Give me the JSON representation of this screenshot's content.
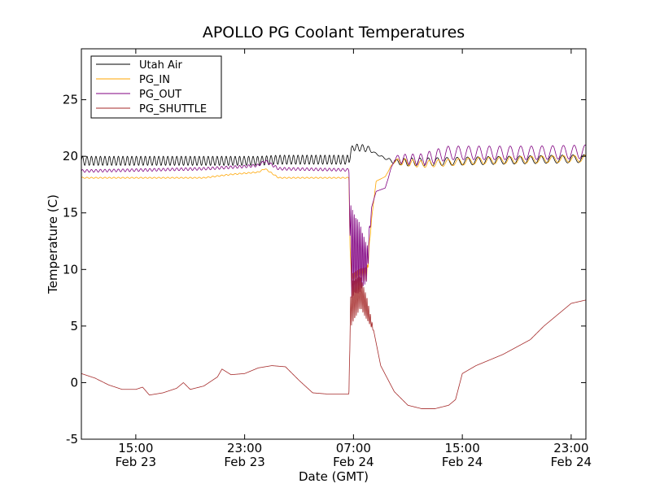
{
  "chart_data": {
    "type": "line",
    "title": "APOLLO PG Coolant Temperatures",
    "xlabel": "Date (GMT)",
    "ylabel": "Temperature (C)",
    "ylim": [
      -5,
      29.5
    ],
    "xlim": [
      "2012-02-23T11:00",
      "2012-02-25T00:05"
    ],
    "y_ticks": [
      -5,
      0,
      5,
      10,
      15,
      20,
      25
    ],
    "x_ticks": [
      {
        "x": "2012-02-23T15:00",
        "time": "15:00",
        "date": "Feb 23"
      },
      {
        "x": "2012-02-23T23:00",
        "time": "23:00",
        "date": "Feb 23"
      },
      {
        "x": "2012-02-24T07:00",
        "time": "07:00",
        "date": "Feb 24"
      },
      {
        "x": "2012-02-24T15:00",
        "time": "15:00",
        "date": "Feb 24"
      },
      {
        "x": "2012-02-24T23:00",
        "time": "23:00",
        "date": "Feb 24"
      }
    ],
    "legend_position": "top-left",
    "grid": false,
    "series": [
      {
        "name": "Utah Air",
        "color": "#000000",
        "style": "oscillating",
        "points": [
          [
            "2012-02-23T11:00",
            19.6
          ],
          [
            "2012-02-23T20:00",
            19.6
          ],
          [
            "2012-02-24T00:00",
            19.6
          ],
          [
            "2012-02-24T01:30",
            19.7
          ],
          [
            "2012-02-24T06:40",
            19.7
          ],
          [
            "2012-02-24T06:50",
            20.5
          ],
          [
            "2012-02-24T07:00",
            20.8
          ],
          [
            "2012-02-24T08:00",
            20.7
          ],
          [
            "2012-02-24T09:00",
            20.0
          ],
          [
            "2012-02-24T10:00",
            19.5
          ],
          [
            "2012-02-24T12:00",
            19.5
          ],
          [
            "2012-02-24T16:00",
            19.6
          ],
          [
            "2012-02-24T20:00",
            19.7
          ],
          [
            "2012-02-25T00:05",
            19.8
          ]
        ],
        "amplitude": [
          [
            "2012-02-23T11:00",
            0.4
          ],
          [
            "2012-02-24T06:40",
            0.4
          ],
          [
            "2012-02-24T06:50",
            0.3
          ],
          [
            "2012-02-24T08:00",
            0.3
          ],
          [
            "2012-02-24T08:30",
            0.05
          ],
          [
            "2012-02-24T09:30",
            0.1
          ],
          [
            "2012-02-24T11:00",
            0.35
          ],
          [
            "2012-02-25T00:05",
            0.35
          ]
        ],
        "period_hours": [
          [
            "2012-02-23T11:00",
            0.33
          ],
          [
            "2012-02-24T06:40",
            0.33
          ],
          [
            "2012-02-24T08:30",
            0.5
          ],
          [
            "2012-02-24T12:00",
            0.6
          ],
          [
            "2012-02-24T14:00",
            0.75
          ],
          [
            "2012-02-25T00:05",
            0.8
          ]
        ]
      },
      {
        "name": "PG_IN",
        "color": "#ffa500",
        "style": "smooth",
        "points": [
          [
            "2012-02-23T11:00",
            18.1
          ],
          [
            "2012-02-23T20:00",
            18.1
          ],
          [
            "2012-02-23T22:00",
            18.4
          ],
          [
            "2012-02-24T00:00",
            18.6
          ],
          [
            "2012-02-24T00:30",
            18.9
          ],
          [
            "2012-02-24T01:00",
            18.5
          ],
          [
            "2012-02-24T01:30",
            18.1
          ],
          [
            "2012-02-24T06:40",
            18.1
          ],
          [
            "2012-02-24T06:45",
            12.0
          ],
          [
            "2012-02-24T06:50",
            9.0
          ],
          [
            "2012-02-24T07:30",
            9.5
          ],
          [
            "2012-02-24T08:00",
            9.6
          ],
          [
            "2012-02-24T08:20",
            14.5
          ],
          [
            "2012-02-24T08:40",
            17.8
          ],
          [
            "2012-02-24T09:20",
            18.2
          ],
          [
            "2012-02-24T10:00",
            19.6
          ],
          [
            "2012-02-24T12:00",
            19.3
          ],
          [
            "2012-02-24T16:00",
            19.6
          ],
          [
            "2012-02-24T20:00",
            19.7
          ],
          [
            "2012-02-25T00:05",
            19.8
          ]
        ],
        "amplitude": [
          [
            "2012-02-23T11:00",
            0.05
          ],
          [
            "2012-02-24T06:40",
            0.05
          ],
          [
            "2012-02-24T06:50",
            0.6
          ],
          [
            "2012-02-24T08:00",
            0.6
          ],
          [
            "2012-02-24T08:20",
            0.0
          ],
          [
            "2012-02-24T09:30",
            0.0
          ],
          [
            "2012-02-24T10:30",
            0.3
          ],
          [
            "2012-02-25T00:05",
            0.3
          ]
        ],
        "period_hours": [
          [
            "2012-02-23T11:00",
            0.33
          ],
          [
            "2012-02-24T06:40",
            0.33
          ],
          [
            "2012-02-24T06:50",
            0.12
          ],
          [
            "2012-02-24T08:00",
            0.12
          ],
          [
            "2012-02-24T09:00",
            0.5
          ],
          [
            "2012-02-24T12:00",
            0.6
          ],
          [
            "2012-02-24T14:00",
            0.75
          ],
          [
            "2012-02-25T00:05",
            0.8
          ]
        ]
      },
      {
        "name": "PG_OUT",
        "color": "#800080",
        "style": "smooth",
        "points": [
          [
            "2012-02-23T11:00",
            18.7
          ],
          [
            "2012-02-23T16:00",
            18.8
          ],
          [
            "2012-02-23T20:00",
            18.9
          ],
          [
            "2012-02-23T23:00",
            19.1
          ],
          [
            "2012-02-24T00:00",
            19.2
          ],
          [
            "2012-02-24T00:30",
            19.6
          ],
          [
            "2012-02-24T01:30",
            18.9
          ],
          [
            "2012-02-24T06:40",
            18.8
          ],
          [
            "2012-02-24T06:45",
            14.0
          ],
          [
            "2012-02-24T06:50",
            11.5
          ],
          [
            "2012-02-24T07:30",
            11.0
          ],
          [
            "2012-02-24T08:00",
            10.5
          ],
          [
            "2012-02-24T08:20",
            15.5
          ],
          [
            "2012-02-24T08:40",
            16.9
          ],
          [
            "2012-02-24T09:20",
            17.2
          ],
          [
            "2012-02-24T10:00",
            19.8
          ],
          [
            "2012-02-24T12:00",
            19.7
          ],
          [
            "2012-02-24T14:00",
            20.3
          ],
          [
            "2012-02-24T20:00",
            20.3
          ],
          [
            "2012-02-25T00:05",
            20.4
          ]
        ],
        "amplitude": [
          [
            "2012-02-23T11:00",
            0.12
          ],
          [
            "2012-02-24T06:40",
            0.12
          ],
          [
            "2012-02-24T06:50",
            4.0
          ],
          [
            "2012-02-24T07:30",
            3.0
          ],
          [
            "2012-02-24T08:00",
            1.5
          ],
          [
            "2012-02-24T08:20",
            0.0
          ],
          [
            "2012-02-24T09:30",
            0.0
          ],
          [
            "2012-02-24T10:30",
            0.4
          ],
          [
            "2012-02-24T13:00",
            0.6
          ],
          [
            "2012-02-25T00:05",
            0.6
          ]
        ],
        "period_hours": [
          [
            "2012-02-23T11:00",
            0.33
          ],
          [
            "2012-02-24T06:40",
            0.33
          ],
          [
            "2012-02-24T06:50",
            0.12
          ],
          [
            "2012-02-24T08:00",
            0.12
          ],
          [
            "2012-02-24T09:00",
            0.5
          ],
          [
            "2012-02-24T12:00",
            0.6
          ],
          [
            "2012-02-24T14:00",
            0.75
          ],
          [
            "2012-02-25T00:05",
            0.8
          ]
        ]
      },
      {
        "name": "PG_SHUTTLE",
        "color": "#a52a2a",
        "style": "smooth",
        "points": [
          [
            "2012-02-23T11:00",
            0.8
          ],
          [
            "2012-02-23T12:00",
            0.4
          ],
          [
            "2012-02-23T13:00",
            -0.2
          ],
          [
            "2012-02-23T14:00",
            -0.6
          ],
          [
            "2012-02-23T15:00",
            -0.6
          ],
          [
            "2012-02-23T15:30",
            -0.4
          ],
          [
            "2012-02-23T16:00",
            -1.1
          ],
          [
            "2012-02-23T17:00",
            -0.9
          ],
          [
            "2012-02-23T18:00",
            -0.5
          ],
          [
            "2012-02-23T18:30",
            0.0
          ],
          [
            "2012-02-23T19:00",
            -0.6
          ],
          [
            "2012-02-23T20:00",
            -0.3
          ],
          [
            "2012-02-23T21:00",
            0.5
          ],
          [
            "2012-02-23T21:20",
            1.2
          ],
          [
            "2012-02-23T22:00",
            0.7
          ],
          [
            "2012-02-23T23:00",
            0.8
          ],
          [
            "2012-02-24T00:00",
            1.3
          ],
          [
            "2012-02-24T01:00",
            1.5
          ],
          [
            "2012-02-24T02:00",
            1.4
          ],
          [
            "2012-02-24T03:00",
            0.2
          ],
          [
            "2012-02-24T04:00",
            -0.9
          ],
          [
            "2012-02-24T05:00",
            -1.0
          ],
          [
            "2012-02-24T06:40",
            -1.0
          ],
          [
            "2012-02-24T06:45",
            5.0
          ],
          [
            "2012-02-24T06:50",
            7.0
          ],
          [
            "2012-02-24T07:30",
            8.0
          ],
          [
            "2012-02-24T08:00",
            6.5
          ],
          [
            "2012-02-24T08:30",
            4.5
          ],
          [
            "2012-02-24T09:00",
            1.5
          ],
          [
            "2012-02-24T10:00",
            -0.8
          ],
          [
            "2012-02-24T11:00",
            -2.0
          ],
          [
            "2012-02-24T12:00",
            -2.3
          ],
          [
            "2012-02-24T13:00",
            -2.3
          ],
          [
            "2012-02-24T14:00",
            -2.0
          ],
          [
            "2012-02-24T14:30",
            -1.5
          ],
          [
            "2012-02-24T15:00",
            0.8
          ],
          [
            "2012-02-24T16:00",
            1.5
          ],
          [
            "2012-02-24T18:00",
            2.5
          ],
          [
            "2012-02-24T20:00",
            3.8
          ],
          [
            "2012-02-24T21:00",
            5.0
          ],
          [
            "2012-02-24T22:00",
            6.0
          ],
          [
            "2012-02-24T23:00",
            7.0
          ],
          [
            "2012-02-25T00:05",
            7.3
          ]
        ],
        "amplitude": [
          [
            "2012-02-23T11:00",
            0.0
          ],
          [
            "2012-02-24T06:40",
            0.0
          ],
          [
            "2012-02-24T06:50",
            2.0
          ],
          [
            "2012-02-24T08:00",
            1.0
          ],
          [
            "2012-02-24T08:30",
            0.0
          ],
          [
            "2012-02-25T00:05",
            0.0
          ]
        ],
        "period_hours": [
          [
            "2012-02-23T11:00",
            0.33
          ],
          [
            "2012-02-24T06:50",
            0.12
          ],
          [
            "2012-02-24T08:00",
            0.12
          ],
          [
            "2012-02-25T00:05",
            0.5
          ]
        ]
      }
    ]
  }
}
